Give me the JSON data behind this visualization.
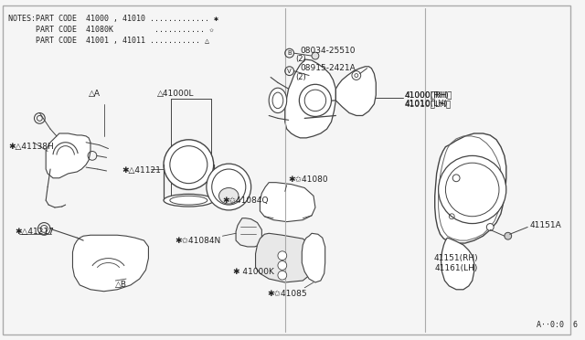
{
  "bg_color": "#f5f5f5",
  "line_color": "#444444",
  "text_color": "#222222",
  "notes": [
    "NOTES:PART CODE  41000 , 41010 ............. ✱",
    "      PART CODE  41080K         ........... ✩",
    "      PART CODE  41001 , 41011 ........... △"
  ],
  "figsize": [
    6.4,
    3.72
  ],
  "dpi": 100
}
